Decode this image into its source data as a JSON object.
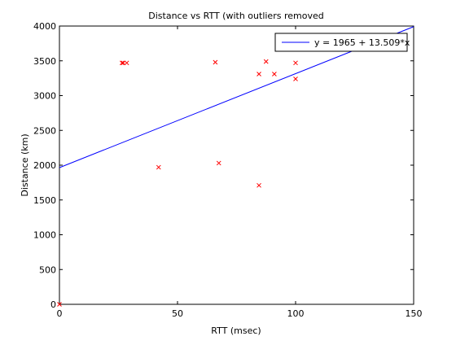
{
  "chart_data": {
    "type": "scatter",
    "title": "Distance vs RTT (with outliers removed",
    "xlabel": "RTT (msec)",
    "ylabel": "Distance (km)",
    "xlim": [
      0,
      150
    ],
    "ylim": [
      0,
      4000
    ],
    "xticks": [
      0,
      50,
      100,
      150
    ],
    "yticks": [
      0,
      500,
      1000,
      1500,
      2000,
      2500,
      3000,
      3500,
      4000
    ],
    "grid": false,
    "legend_position": "top-right",
    "series": [
      {
        "kind": "scatter",
        "marker": "x",
        "color": "#ff0000",
        "points": [
          {
            "x": 0,
            "y": 0
          },
          {
            "x": 26.5,
            "y": 3470
          },
          {
            "x": 27.0,
            "y": 3470
          },
          {
            "x": 28.5,
            "y": 3470
          },
          {
            "x": 42,
            "y": 1970
          },
          {
            "x": 66,
            "y": 3480
          },
          {
            "x": 67.5,
            "y": 2030
          },
          {
            "x": 84.5,
            "y": 3310
          },
          {
            "x": 84.5,
            "y": 1710
          },
          {
            "x": 87.5,
            "y": 3490
          },
          {
            "x": 91,
            "y": 3310
          },
          {
            "x": 100,
            "y": 3470
          },
          {
            "x": 100,
            "y": 3240
          }
        ]
      },
      {
        "kind": "line",
        "name": "y = 1965 + 13.509*x",
        "color": "#0000ff",
        "intercept": 1965,
        "slope": 13.509
      }
    ]
  }
}
